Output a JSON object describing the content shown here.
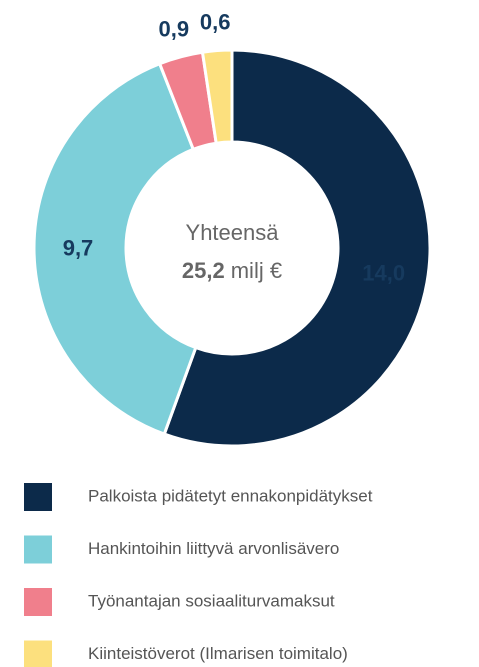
{
  "chart_data": {
    "type": "donut",
    "categories": [
      "Palkoista pidätetyt ennakonpidätykset",
      "Hankintoihin liittyvä arvonlisävero",
      "Työnantajan sosiaaliturvamaksut",
      "Kiinteistöverot (Ilmarisen toimitalo)"
    ],
    "values": [
      14.0,
      9.7,
      0.9,
      0.6
    ],
    "value_labels": [
      "14,0",
      "9,7",
      "0,9",
      "0,6"
    ],
    "colors": [
      "#0c2a4a",
      "#7dcfd9",
      "#f07f8c",
      "#fce07e"
    ],
    "center_label": "Yhteensä",
    "total": 25.2,
    "total_label": "25,2",
    "unit_label": "milj €",
    "legend": "bottom"
  }
}
